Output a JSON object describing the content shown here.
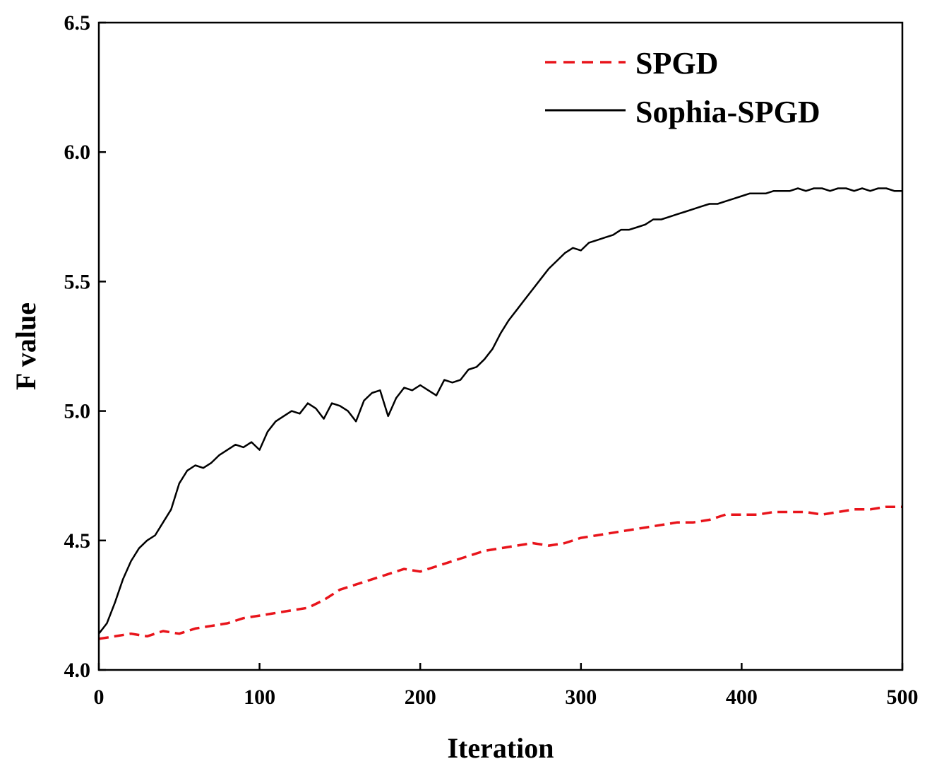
{
  "chart_data": {
    "type": "line",
    "title": "",
    "xlabel": "Iteration",
    "ylabel": "F value",
    "xlim": [
      0,
      500
    ],
    "ylim": [
      4.0,
      6.5
    ],
    "xticks": [
      0,
      100,
      200,
      300,
      400,
      500
    ],
    "xtick_labels": [
      "0",
      "100",
      "200",
      "300",
      "400",
      "500"
    ],
    "yticks": [
      4.0,
      4.5,
      5.0,
      5.5,
      6.0,
      6.5
    ],
    "ytick_labels": [
      "4.0",
      "4.5",
      "5.0",
      "5.5",
      "6.0",
      "6.5"
    ],
    "grid": false,
    "legend_position": "top-right",
    "series": [
      {
        "name": "SPGD",
        "color": "#e8141b",
        "style": "dashed",
        "x": [
          0,
          10,
          20,
          30,
          40,
          50,
          60,
          70,
          80,
          90,
          100,
          110,
          120,
          130,
          140,
          150,
          160,
          170,
          180,
          190,
          200,
          210,
          220,
          230,
          240,
          250,
          260,
          270,
          280,
          290,
          300,
          310,
          320,
          330,
          340,
          350,
          360,
          370,
          380,
          390,
          400,
          410,
          420,
          430,
          440,
          450,
          460,
          470,
          480,
          490,
          500
        ],
        "y": [
          4.12,
          4.13,
          4.14,
          4.13,
          4.15,
          4.14,
          4.16,
          4.17,
          4.18,
          4.2,
          4.21,
          4.22,
          4.23,
          4.24,
          4.27,
          4.31,
          4.33,
          4.35,
          4.37,
          4.39,
          4.38,
          4.4,
          4.42,
          4.44,
          4.46,
          4.47,
          4.48,
          4.49,
          4.48,
          4.49,
          4.51,
          4.52,
          4.53,
          4.54,
          4.55,
          4.56,
          4.57,
          4.57,
          4.58,
          4.6,
          4.6,
          4.6,
          4.61,
          4.61,
          4.61,
          4.6,
          4.61,
          4.62,
          4.62,
          4.63,
          4.63
        ]
      },
      {
        "name": "Sophia-SPGD",
        "color": "#000000",
        "style": "solid",
        "x": [
          0,
          5,
          10,
          15,
          20,
          25,
          30,
          35,
          40,
          45,
          50,
          55,
          60,
          65,
          70,
          75,
          80,
          85,
          90,
          95,
          100,
          105,
          110,
          115,
          120,
          125,
          130,
          135,
          140,
          145,
          150,
          155,
          160,
          165,
          170,
          175,
          180,
          185,
          190,
          195,
          200,
          205,
          210,
          215,
          220,
          225,
          230,
          235,
          240,
          245,
          250,
          255,
          260,
          265,
          270,
          275,
          280,
          285,
          290,
          295,
          300,
          305,
          310,
          315,
          320,
          325,
          330,
          335,
          340,
          345,
          350,
          355,
          360,
          365,
          370,
          375,
          380,
          385,
          390,
          395,
          400,
          405,
          410,
          415,
          420,
          425,
          430,
          435,
          440,
          445,
          450,
          455,
          460,
          465,
          470,
          475,
          480,
          485,
          490,
          495,
          500
        ],
        "y": [
          4.14,
          4.18,
          4.26,
          4.35,
          4.42,
          4.47,
          4.5,
          4.52,
          4.57,
          4.62,
          4.72,
          4.77,
          4.79,
          4.78,
          4.8,
          4.83,
          4.85,
          4.87,
          4.86,
          4.88,
          4.85,
          4.92,
          4.96,
          4.98,
          5.0,
          4.99,
          5.03,
          5.01,
          4.97,
          5.03,
          5.02,
          5.0,
          4.96,
          5.04,
          5.07,
          5.08,
          4.98,
          5.05,
          5.09,
          5.08,
          5.1,
          5.08,
          5.06,
          5.12,
          5.11,
          5.12,
          5.16,
          5.17,
          5.2,
          5.24,
          5.3,
          5.35,
          5.39,
          5.43,
          5.47,
          5.51,
          5.55,
          5.58,
          5.61,
          5.63,
          5.62,
          5.65,
          5.66,
          5.67,
          5.68,
          5.7,
          5.7,
          5.71,
          5.72,
          5.74,
          5.74,
          5.75,
          5.76,
          5.77,
          5.78,
          5.79,
          5.8,
          5.8,
          5.81,
          5.82,
          5.83,
          5.84,
          5.84,
          5.84,
          5.85,
          5.85,
          5.85,
          5.86,
          5.85,
          5.86,
          5.86,
          5.85,
          5.86,
          5.86,
          5.85,
          5.86,
          5.85,
          5.86,
          5.86,
          5.85,
          5.85
        ]
      }
    ]
  }
}
